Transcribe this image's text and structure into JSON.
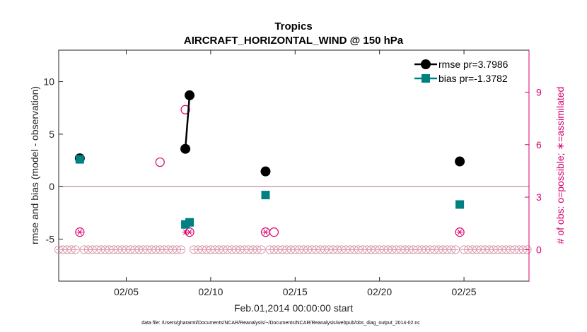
{
  "chart_data": {
    "type": "scatter",
    "title": "Tropics",
    "subtitle": "AIRCRAFT_HORIZONTAL_WIND @ 150 hPa",
    "xlabel": "Feb.01,2014 00:00:00 start",
    "ylabel": "rmse and bias (model - observation)",
    "y2label": "# of obs: o=possible; ∗=assimilated",
    "footnote": "data file: /Users/gharamti/Documents/NCAR/Reanalysis/~/Documents/NCAR/Reanalysis/webpub/obs_diag_output_2014-02.nc",
    "xlim": [
      1,
      28.85
    ],
    "ylim": [
      -9,
      13
    ],
    "y2lim": [
      -1.8,
      11.4
    ],
    "x_ticks": [
      5,
      10,
      15,
      20,
      25
    ],
    "x_tick_labels": [
      "02/05",
      "02/10",
      "02/15",
      "02/20",
      "02/25"
    ],
    "y_ticks": [
      -5,
      0,
      5,
      10
    ],
    "y_tick_labels": [
      "-5",
      "0",
      "5",
      "10"
    ],
    "y2_ticks": [
      0,
      3,
      6,
      9
    ],
    "y2_tick_labels": [
      "0",
      "3",
      "6",
      "9"
    ],
    "legend_position": "top-right",
    "series": [
      {
        "name": "rmse pr=3.7986",
        "color": "#000000",
        "marker": "circle",
        "axis": "left",
        "points": [
          [
            2.25,
            2.7
          ],
          [
            8.5,
            3.6
          ],
          [
            8.75,
            8.7
          ],
          [
            13.25,
            1.45
          ],
          [
            24.75,
            2.4
          ]
        ],
        "line_segments": [
          [
            1,
            2
          ]
        ]
      },
      {
        "name": "bias pr=-1.3782",
        "color": "#008080",
        "marker": "square",
        "axis": "left",
        "points": [
          [
            2.25,
            2.6
          ],
          [
            8.5,
            -3.6
          ],
          [
            8.75,
            -3.4
          ],
          [
            13.25,
            -0.8
          ],
          [
            24.75,
            -1.7
          ]
        ]
      }
    ],
    "obs_possible": {
      "color": "#d6006b",
      "marker": "open-circle",
      "axis": "right",
      "points": [
        [
          2.25,
          1
        ],
        [
          7.0,
          5
        ],
        [
          8.5,
          8
        ],
        [
          8.75,
          1
        ],
        [
          13.25,
          1
        ],
        [
          13.75,
          1
        ],
        [
          24.75,
          1
        ]
      ]
    },
    "obs_assimilated": {
      "color": "#d6006b",
      "marker": "asterisk",
      "axis": "right",
      "points": [
        [
          2.25,
          1
        ],
        [
          8.5,
          1
        ],
        [
          8.75,
          1
        ],
        [
          13.25,
          1
        ],
        [
          24.75,
          1
        ]
      ]
    },
    "zero_baseline": {
      "color": "#d99aab",
      "positions": [
        1.0,
        1.25,
        1.5,
        1.75,
        2.0,
        2.5,
        2.75,
        3.0,
        3.25,
        3.5,
        3.75,
        4.0,
        4.25,
        4.5,
        4.75,
        5.0,
        5.25,
        5.5,
        5.75,
        6.0,
        6.25,
        6.5,
        6.75,
        7.0,
        7.25,
        7.5,
        7.75,
        8.0,
        8.25,
        9.0,
        9.25,
        9.5,
        9.75,
        10.0,
        10.25,
        10.5,
        10.75,
        11.0,
        11.25,
        11.5,
        11.75,
        12.0,
        12.25,
        12.5,
        12.75,
        13.0,
        13.5,
        13.75,
        14.0,
        14.25,
        14.5,
        14.75,
        15.0,
        15.25,
        15.5,
        15.75,
        16.0,
        16.25,
        16.5,
        16.75,
        17.0,
        17.25,
        17.5,
        17.75,
        18.0,
        18.25,
        18.5,
        18.75,
        19.0,
        19.25,
        19.5,
        19.75,
        20.0,
        20.25,
        20.5,
        20.75,
        21.0,
        21.25,
        21.5,
        21.75,
        22.0,
        22.25,
        22.5,
        22.75,
        23.0,
        23.25,
        23.5,
        23.75,
        24.0,
        24.25,
        24.5,
        25.0,
        25.25,
        25.5,
        25.75,
        26.0,
        26.25,
        26.5,
        26.75,
        27.0,
        27.25,
        27.5,
        27.75,
        28.0,
        28.25,
        28.5,
        28.75
      ],
      "value": 0
    }
  }
}
